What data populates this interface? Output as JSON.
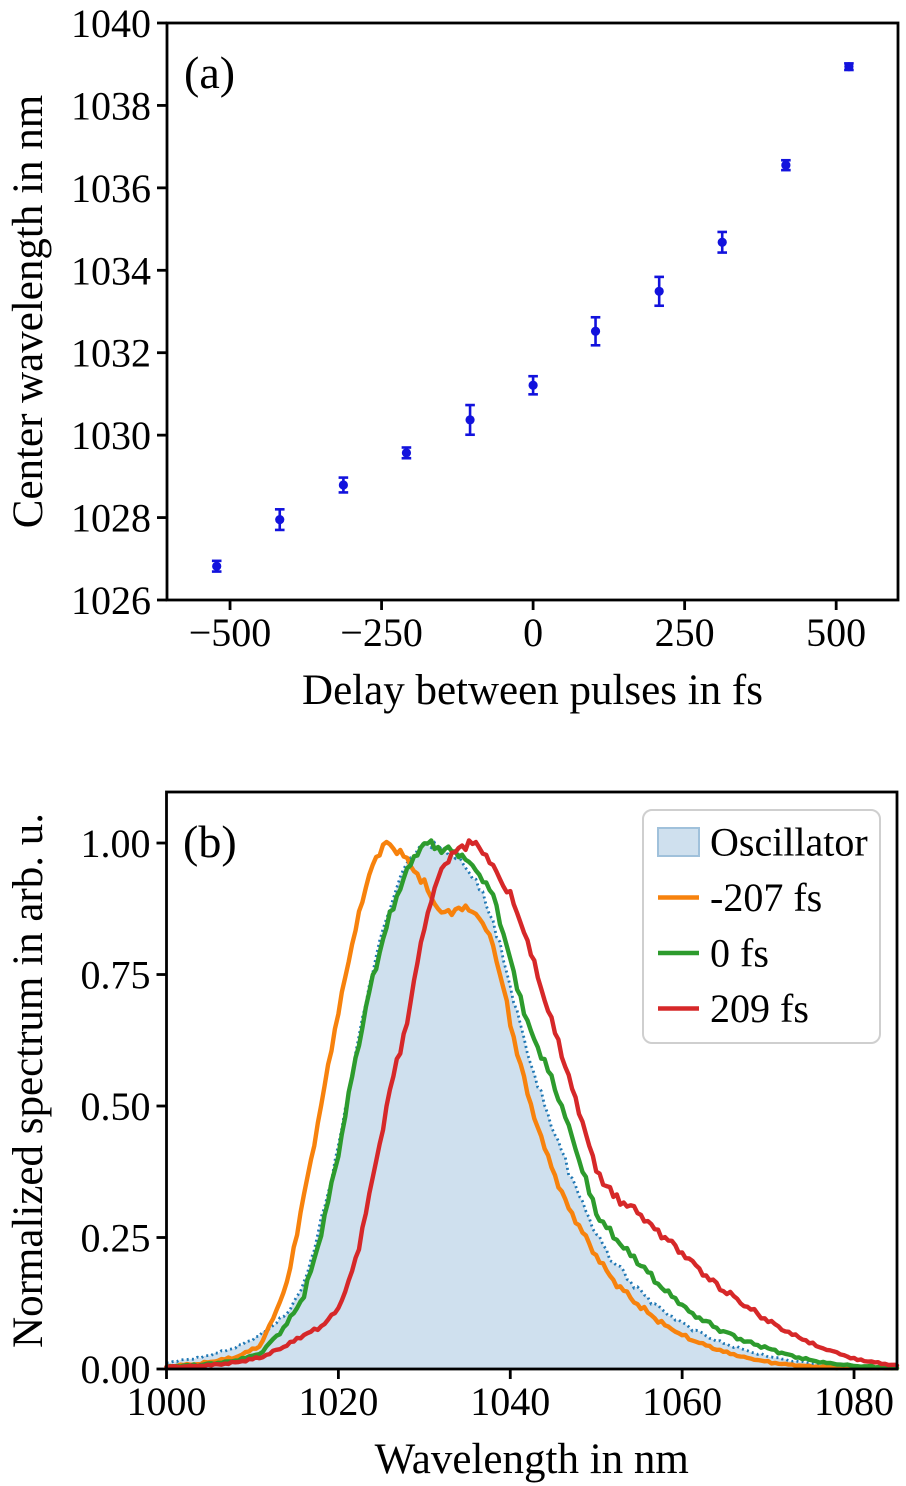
{
  "figure": {
    "background": "#ffffff",
    "panel_count": 2
  },
  "chart_data": [
    {
      "type": "scatter",
      "panel_label": "(a)",
      "xlabel": "Delay between pulses in fs",
      "ylabel": "Center wavelength in nm",
      "xlim": [
        -604,
        602
      ],
      "ylim": [
        1026,
        1040
      ],
      "xticks": [
        -500,
        -250,
        0,
        250,
        500
      ],
      "xtick_labels": [
        "−500",
        "−250",
        "0",
        "250",
        "500"
      ],
      "yticks": [
        1026,
        1028,
        1030,
        1032,
        1034,
        1036,
        1038,
        1040
      ],
      "grid": false,
      "marker": {
        "shape": "circle",
        "color": "#1212dd",
        "size": 4.6
      },
      "x": [
        -522,
        -418,
        -313,
        -209,
        -104,
        0,
        103,
        208,
        312,
        417,
        521
      ],
      "y": [
        1026.82,
        1027.95,
        1028.79,
        1029.57,
        1030.37,
        1031.21,
        1032.52,
        1033.49,
        1034.68,
        1036.55,
        1038.94
      ],
      "yerr": [
        0.13,
        0.25,
        0.18,
        0.13,
        0.36,
        0.22,
        0.34,
        0.35,
        0.25,
        0.12,
        0.08
      ]
    },
    {
      "type": "line",
      "panel_label": "(b)",
      "xlabel": "Wavelength in nm",
      "ylabel": "Normalized spectrum in arb. u.",
      "xlim": [
        1000,
        1085
      ],
      "ylim": [
        0,
        1.097
      ],
      "xticks": [
        1000,
        1020,
        1040,
        1060,
        1080
      ],
      "yticks": [
        0,
        0.25,
        0.5,
        0.75,
        1
      ],
      "ytick_labels": [
        "0.00",
        "0.25",
        "0.50",
        "0.75",
        "1.00"
      ],
      "grid": false,
      "legend_position": "upper right",
      "series": [
        {
          "name": "Oscillator",
          "style": "area",
          "fill": "#cfe0ee",
          "edge": "#1f77b4",
          "patch_edge": "#a0c1db",
          "x": [
            1000,
            1004,
            1008,
            1011,
            1014,
            1016,
            1018,
            1020,
            1022,
            1024,
            1026,
            1028,
            1030,
            1032,
            1034,
            1036,
            1038,
            1040,
            1042,
            1044,
            1046,
            1048,
            1050,
            1052,
            1055,
            1058,
            1061,
            1064,
            1067,
            1070,
            1073,
            1076,
            1080,
            1085
          ],
          "y": [
            0.012,
            0.022,
            0.04,
            0.065,
            0.105,
            0.16,
            0.28,
            0.42,
            0.6,
            0.76,
            0.88,
            0.965,
            1.0,
            0.99,
            0.97,
            0.93,
            0.85,
            0.73,
            0.6,
            0.5,
            0.41,
            0.33,
            0.255,
            0.205,
            0.15,
            0.108,
            0.078,
            0.054,
            0.037,
            0.024,
            0.015,
            0.009,
            0.004,
            0.002
          ]
        },
        {
          "name": "-207 fs",
          "style": "line",
          "color": "#f7820d",
          "x": [
            1000,
            1004,
            1008,
            1011,
            1014,
            1016,
            1018,
            1020,
            1022,
            1024,
            1025.5,
            1027,
            1028.5,
            1030,
            1032,
            1034,
            1036,
            1038,
            1040,
            1042,
            1044,
            1046,
            1048,
            1050,
            1052,
            1055,
            1058,
            1061,
            1064,
            1067,
            1070,
            1073,
            1076,
            1080,
            1085
          ],
          "y": [
            0.005,
            0.01,
            0.022,
            0.045,
            0.16,
            0.33,
            0.5,
            0.68,
            0.84,
            0.96,
            1.0,
            0.985,
            0.955,
            0.92,
            0.865,
            0.875,
            0.868,
            0.81,
            0.66,
            0.52,
            0.42,
            0.335,
            0.27,
            0.215,
            0.17,
            0.12,
            0.083,
            0.056,
            0.037,
            0.023,
            0.013,
            0.007,
            0.004,
            0.002,
            0.001
          ]
        },
        {
          "name": "0 fs",
          "style": "line",
          "color": "#2d9b2d",
          "x": [
            1000,
            1004,
            1008,
            1011,
            1014,
            1016,
            1018,
            1020,
            1022,
            1024,
            1026,
            1028,
            1030,
            1032,
            1034,
            1036,
            1038,
            1040,
            1042,
            1044,
            1046,
            1048,
            1050,
            1052,
            1055,
            1058,
            1061,
            1064,
            1067,
            1070,
            1073,
            1076,
            1080,
            1085
          ],
          "y": [
            0.004,
            0.008,
            0.016,
            0.03,
            0.085,
            0.14,
            0.26,
            0.41,
            0.59,
            0.745,
            0.86,
            0.95,
            1.0,
            0.99,
            0.98,
            0.95,
            0.9,
            0.78,
            0.655,
            0.585,
            0.5,
            0.4,
            0.295,
            0.25,
            0.2,
            0.148,
            0.107,
            0.078,
            0.055,
            0.039,
            0.024,
            0.013,
            0.006,
            0.002
          ]
        },
        {
          "name": "209 fs",
          "style": "line",
          "color": "#d62829",
          "x": [
            1000,
            1004,
            1008,
            1011,
            1014,
            1016,
            1018,
            1020,
            1022,
            1024,
            1026,
            1028,
            1030,
            1032,
            1034,
            1035.5,
            1037,
            1038,
            1040,
            1042,
            1044,
            1046,
            1048,
            1050,
            1052,
            1055,
            1058,
            1061,
            1064,
            1067,
            1070,
            1073,
            1076,
            1080,
            1085
          ],
          "y": [
            0.004,
            0.006,
            0.012,
            0.022,
            0.045,
            0.065,
            0.08,
            0.115,
            0.205,
            0.36,
            0.53,
            0.66,
            0.845,
            0.955,
            0.99,
            1.0,
            0.985,
            0.955,
            0.9,
            0.815,
            0.7,
            0.6,
            0.49,
            0.38,
            0.33,
            0.295,
            0.25,
            0.205,
            0.16,
            0.124,
            0.091,
            0.064,
            0.042,
            0.019,
            0.006
          ]
        }
      ]
    }
  ]
}
